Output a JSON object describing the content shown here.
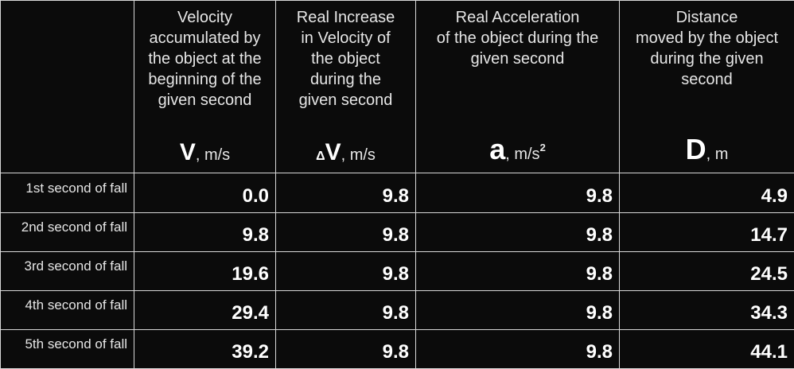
{
  "table": {
    "columns": [
      {
        "header": "Velocity\naccumulated by\nthe object at the\nbeginning of the\ngiven second",
        "prefix": "",
        "symbol": "V",
        "unit": ", m/s",
        "superscript": ""
      },
      {
        "header": "Real Increase\nin Velocity of\nthe object\nduring the\ngiven second",
        "prefix": "Δ",
        "symbol": "V",
        "unit": ", m/s",
        "superscript": ""
      },
      {
        "header": "Real Acceleration\nof the object during the\ngiven second",
        "prefix": "",
        "symbol": "a",
        "unit": ", m/s",
        "superscript": "2"
      },
      {
        "header": "Distance\nmoved by the object\nduring the given\nsecond",
        "prefix": "",
        "symbol": "D",
        "unit": ", m",
        "superscript": ""
      }
    ],
    "rows": [
      {
        "label": "1st second of fall",
        "values": [
          "0.0",
          "9.8",
          "9.8",
          "4.9"
        ]
      },
      {
        "label": "2nd second of fall",
        "values": [
          "9.8",
          "9.8",
          "9.8",
          "14.7"
        ]
      },
      {
        "label": "3rd second of fall",
        "values": [
          "19.6",
          "9.8",
          "9.8",
          "24.5"
        ]
      },
      {
        "label": "4th second of fall",
        "values": [
          "29.4",
          "9.8",
          "9.8",
          "34.3"
        ]
      },
      {
        "label": "5th second of fall",
        "values": [
          "39.2",
          "9.8",
          "9.8",
          "44.1"
        ]
      }
    ]
  },
  "colors": {
    "background": "#0b0b0b",
    "border": "#d8d8d8",
    "text": "#ffffff"
  }
}
